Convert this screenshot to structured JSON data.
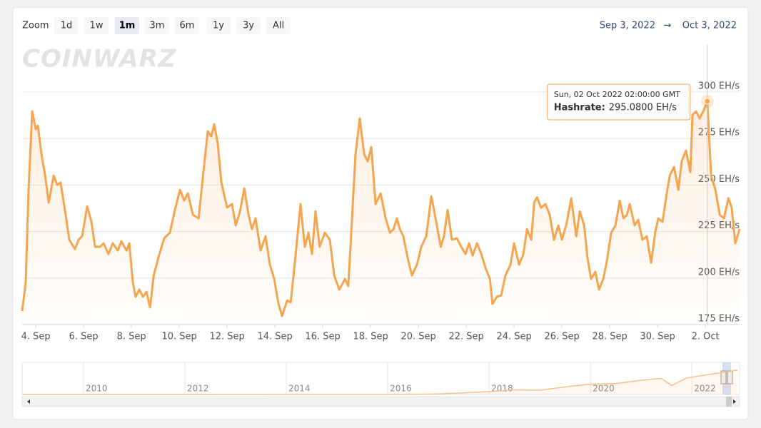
{
  "chart_data": {
    "type": "line",
    "watermark": "COINWARZ",
    "zoom": {
      "label": "Zoom",
      "buttons": [
        "1d",
        "1w",
        "1m",
        "3m",
        "6m",
        "1y",
        "3y",
        "All"
      ],
      "selected": 2
    },
    "range": {
      "from": "Sep 3, 2022",
      "arrow": "→",
      "to": "Oct 3, 2022"
    },
    "series": [
      {
        "color": "#f5a54f",
        "x": [
          0.43,
          0.58,
          0.7,
          0.85,
          1.0,
          1.09,
          1.24,
          1.39,
          1.54,
          1.75,
          1.9,
          2.04,
          2.25,
          2.4,
          2.64,
          2.79,
          2.94,
          3.15,
          3.33,
          3.48,
          3.69,
          3.84,
          4.04,
          4.22,
          4.43,
          4.58,
          4.79,
          4.91,
          5.06,
          5.18,
          5.33,
          5.48,
          5.63,
          5.78,
          5.93,
          6.13,
          6.37,
          6.61,
          6.82,
          7.03,
          7.21,
          7.36,
          7.57,
          7.81,
          8.01,
          8.19,
          8.34,
          8.46,
          8.61,
          8.76,
          9.0,
          9.21,
          9.36,
          9.54,
          9.72,
          9.9,
          10.04,
          10.19,
          10.4,
          10.61,
          10.79,
          10.97,
          11.15,
          11.3,
          11.51,
          11.66,
          11.87,
          12.07,
          12.25,
          12.4,
          12.55,
          12.7,
          12.87,
          13.09,
          13.3,
          13.48,
          13.69,
          13.93,
          14.07,
          14.19,
          14.37,
          14.55,
          14.73,
          14.88,
          15.03,
          15.21,
          15.42,
          15.63,
          15.81,
          15.96,
          16.1,
          16.22,
          16.37,
          16.55,
          16.73,
          16.94,
          17.12,
          17.33,
          17.54,
          17.72,
          17.93,
          18.07,
          18.22,
          18.4,
          18.61,
          18.79,
          18.97,
          19.12,
          19.27,
          19.45,
          19.63,
          19.81,
          19.99,
          20.1,
          20.28,
          20.46,
          20.64,
          20.85,
          21.0,
          21.21,
          21.39,
          21.54,
          21.72,
          21.84,
          21.96,
          22.13,
          22.31,
          22.49,
          22.67,
          22.85,
          23.0,
          23.18,
          23.39,
          23.6,
          23.75,
          23.93,
          24.07,
          24.22,
          24.4,
          24.55,
          24.73,
          24.88,
          25.06,
          25.24,
          25.42,
          25.57,
          25.72,
          25.84,
          26.04,
          26.19,
          26.37,
          26.55,
          26.73,
          26.91,
          27.03,
          27.21,
          27.36,
          27.51,
          27.69,
          27.87,
          28.01,
          28.19,
          28.37,
          28.46,
          28.61,
          28.76,
          28.91,
          29.08,
          29.24,
          29.42,
          29.6,
          29.78,
          29.96,
          30.1,
          30.25,
          30.43
        ],
        "values": [
          182.3,
          197.6,
          247.4,
          289.6,
          280.0,
          281.9,
          266.6,
          255.1,
          240.5,
          255.1,
          250.1,
          251.3,
          234.0,
          220.6,
          215.6,
          220.6,
          222.5,
          238.6,
          230.2,
          216.8,
          216.8,
          218.7,
          212.9,
          218.7,
          214.8,
          219.8,
          214.8,
          218.7,
          197.6,
          189.9,
          193.8,
          189.9,
          192.6,
          184.2,
          201.4,
          211.0,
          221.4,
          224.4,
          236.7,
          247.4,
          241.7,
          245.5,
          234.0,
          232.1,
          257.0,
          278.9,
          276.2,
          282.7,
          272.4,
          251.3,
          237.9,
          239.8,
          228.3,
          235.9,
          248.2,
          234.0,
          226.3,
          232.1,
          214.8,
          222.5,
          207.2,
          199.5,
          186.1,
          179.6,
          188.0,
          186.9,
          212.9,
          239.8,
          216.8,
          224.4,
          212.9,
          235.9,
          216.8,
          224.4,
          220.6,
          201.4,
          193.8,
          199.5,
          195.7,
          224.4,
          266.6,
          285.8,
          266.6,
          262.8,
          270.4,
          239.8,
          245.5,
          232.1,
          224.4,
          226.3,
          232.1,
          226.3,
          222.5,
          211.0,
          201.4,
          207.2,
          216.8,
          222.5,
          244.0,
          232.1,
          216.8,
          222.5,
          236.7,
          220.6,
          221.4,
          216.8,
          212.9,
          218.7,
          212.1,
          218.7,
          212.9,
          205.3,
          199.5,
          186.1,
          189.9,
          190.7,
          201.4,
          207.2,
          218.7,
          207.2,
          212.9,
          226.3,
          220.6,
          240.6,
          243.4,
          237.8,
          239.8,
          234.0,
          220.6,
          228.3,
          220.6,
          228.3,
          242.9,
          222.5,
          235.9,
          228.3,
          211.0,
          199.5,
          203.4,
          193.8,
          199.5,
          209.1,
          224.4,
          228.3,
          241.7,
          232.1,
          234.0,
          239.8,
          228.3,
          231.3,
          220.6,
          222.5,
          208.3,
          225.2,
          232.1,
          230.2,
          243.6,
          255.1,
          259.7,
          247.4,
          262.8,
          268.5,
          257.0,
          287.7,
          289.6,
          285.8,
          289.6,
          295.08,
          255.1,
          247.4,
          234.0,
          232.1,
          242.9,
          237.9,
          218.7,
          226.3
        ]
      }
    ],
    "xlim": [
      0.43,
      30.43
    ],
    "xticks": [
      {
        "value": 1,
        "label": "4. Sep"
      },
      {
        "value": 3,
        "label": "6. Sep"
      },
      {
        "value": 5,
        "label": "8. Sep"
      },
      {
        "value": 7,
        "label": "10. Sep"
      },
      {
        "value": 9,
        "label": "12. Sep"
      },
      {
        "value": 11,
        "label": "14. Sep"
      },
      {
        "value": 13,
        "label": "16. Sep"
      },
      {
        "value": 15,
        "label": "18. Sep"
      },
      {
        "value": 17,
        "label": "20. Sep"
      },
      {
        "value": 19,
        "label": "22. Sep"
      },
      {
        "value": 21,
        "label": "24. Sep"
      },
      {
        "value": 23,
        "label": "26. Sep"
      },
      {
        "value": 25,
        "label": "28. Sep"
      },
      {
        "value": 27,
        "label": "30. Sep"
      },
      {
        "value": 29,
        "label": "2. Oct"
      }
    ],
    "ylim": [
      175,
      325.7
    ],
    "yticks": [
      {
        "value": 175,
        "label": "175 EH/s"
      },
      {
        "value": 200,
        "label": "200 EH/s"
      },
      {
        "value": 225,
        "label": "225 EH/s"
      },
      {
        "value": 250,
        "label": "250 EH/s"
      },
      {
        "value": 275,
        "label": "275 EH/s"
      },
      {
        "value": 300,
        "label": "300 EH/s"
      }
    ],
    "grid": true,
    "tooltip": {
      "date": "Sun, 02 Oct 2022 02:00:00 GMT",
      "label": "Hashrate:",
      "x": 29.08,
      "value": 295.08,
      "value_label": "295.0800 EH/s"
    },
    "navigator": {
      "x": [
        2008.8,
        2016,
        2017,
        2018,
        2018.5,
        2019,
        2019.5,
        2020,
        2020.5,
        2021,
        2021.4,
        2021.6,
        2021.9,
        2022.3,
        2022.7,
        2022.9
      ],
      "values": [
        0,
        1,
        5,
        30,
        50,
        45,
        80,
        110,
        115,
        150,
        170,
        95,
        175,
        210,
        240,
        260
      ],
      "xlim": [
        2008.79,
        2022.94
      ],
      "ylim": [
        0,
        340
      ],
      "xticks": [
        2010,
        2012,
        2014,
        2016,
        2018,
        2020,
        2022
      ]
    }
  }
}
